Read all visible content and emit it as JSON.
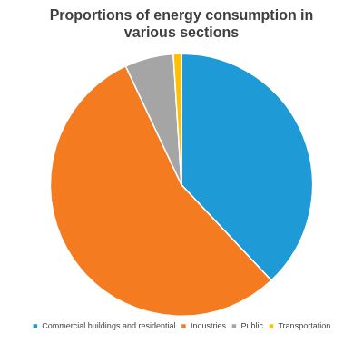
{
  "chart_data": {
    "type": "pie",
    "title": "Proportions of energy consumption in various sections",
    "categories": [
      "Commercial buildings and residential",
      "Industries",
      "Public",
      "Transportation"
    ],
    "values": [
      38,
      55,
      6,
      1
    ],
    "colors": [
      "#1e9ad6",
      "#f47b20",
      "#a5a5a5",
      "#ffc000"
    ],
    "legend": "bottom"
  }
}
